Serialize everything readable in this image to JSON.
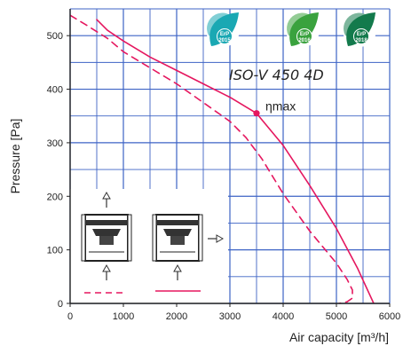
{
  "chart_data": {
    "type": "line",
    "xlabel": "Air capacity [m³/h]",
    "ylabel": "Pressure [Pa]",
    "xlim": [
      0,
      6000
    ],
    "ylim": [
      0,
      550
    ],
    "x_ticks": [
      "0",
      "1000",
      "2000",
      "3000",
      "4000",
      "5000",
      "6000"
    ],
    "y_ticks": [
      "0",
      "100",
      "200",
      "300",
      "400",
      "500"
    ],
    "grid": true,
    "model_label": "ISO-V 450 4D",
    "annotation": {
      "label": "ηmax",
      "x": 3500,
      "y": 355
    },
    "series": [
      {
        "style": "solid",
        "color": "#e5175f",
        "x": [
          500,
          700,
          1000,
          1500,
          2000,
          2500,
          3000,
          3500,
          4000,
          4500,
          5000,
          5400,
          5700
        ],
        "y": [
          530,
          510,
          490,
          460,
          435,
          410,
          385,
          355,
          295,
          220,
          140,
          65,
          0
        ]
      },
      {
        "style": "dashed",
        "color": "#e5175f",
        "x": [
          0,
          300,
          700,
          1000,
          1500,
          2000,
          2500,
          3000,
          3300,
          3600,
          4000,
          4500,
          5000,
          5200,
          5300,
          5300,
          5200,
          5050
        ],
        "y": [
          538,
          520,
          495,
          470,
          440,
          410,
          375,
          340,
          310,
          270,
          205,
          135,
          75,
          45,
          25,
          10,
          3,
          0
        ]
      }
    ],
    "erp_badges": [
      {
        "label": "ErP",
        "year": "2015",
        "color": "#1aa8b3"
      },
      {
        "label": "ErP",
        "year": "2016",
        "color": "#3aa23e"
      },
      {
        "label": "ErP",
        "year": "2018",
        "color": "#137a4c"
      }
    ]
  }
}
